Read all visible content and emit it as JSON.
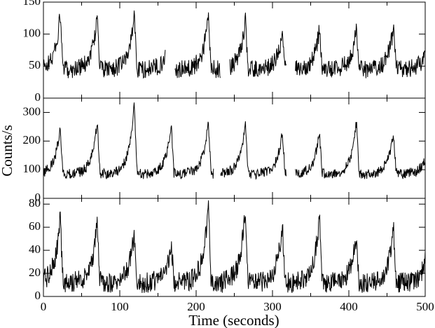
{
  "chart_data": [
    {
      "type": "line",
      "panel": "top",
      "xlim": [
        0,
        500
      ],
      "ylim": [
        0,
        150
      ],
      "xticks": [
        0,
        100,
        200,
        300,
        400,
        500
      ],
      "yticks": [
        0,
        50,
        100,
        150
      ],
      "yticklabels": [
        "0",
        "50",
        "100",
        "150"
      ],
      "baseline": 45,
      "period": 48.5,
      "phase": 22,
      "noise": 14,
      "peaks": [
        130,
        130,
        130,
        107,
        130,
        123,
        100,
        108,
        110,
        112
      ],
      "gaps": [
        [
          160,
          172
        ],
        [
          232,
          244
        ],
        [
          318,
          330
        ]
      ],
      "series": [
        {
          "name": "",
          "description": "light curve"
        }
      ]
    },
    {
      "type": "line",
      "panel": "middle",
      "xlim": [
        0,
        500
      ],
      "ylim": [
        0,
        350
      ],
      "xticks": [
        0,
        100,
        200,
        300,
        400,
        500
      ],
      "yticks": [
        0,
        100,
        200,
        300
      ],
      "yticklabels": [
        "0",
        "100",
        "200",
        "300"
      ],
      "baseline": 85,
      "period": 48.5,
      "phase": 22,
      "noise": 18,
      "peaks": [
        250,
        265,
        340,
        265,
        270,
        265,
        235,
        230,
        270,
        230
      ],
      "gaps": [
        [
          223,
          232
        ],
        [
          318,
          330
        ]
      ],
      "series": [
        {
          "name": "",
          "description": "light curve"
        }
      ]
    },
    {
      "type": "line",
      "panel": "bottom",
      "xlim": [
        0,
        500
      ],
      "ylim": [
        0,
        85
      ],
      "xticks": [
        0,
        100,
        200,
        300,
        400,
        500
      ],
      "xticklabels": [
        "0",
        "100",
        "200",
        "300",
        "400",
        "500"
      ],
      "yticks": [
        0,
        20,
        40,
        60,
        80
      ],
      "yticklabels": [
        "0",
        "20",
        "40",
        "60",
        "80"
      ],
      "baseline": 12,
      "period": 48.5,
      "phase": 22,
      "noise": 9,
      "peaks": [
        68,
        65,
        55,
        48,
        80,
        76,
        62,
        70,
        54,
        60
      ],
      "gaps": [],
      "series": [
        {
          "name": "",
          "description": "light curve"
        }
      ]
    }
  ],
  "labels": {
    "xlabel": "Time (seconds)",
    "ylabel": "Counts/s"
  }
}
